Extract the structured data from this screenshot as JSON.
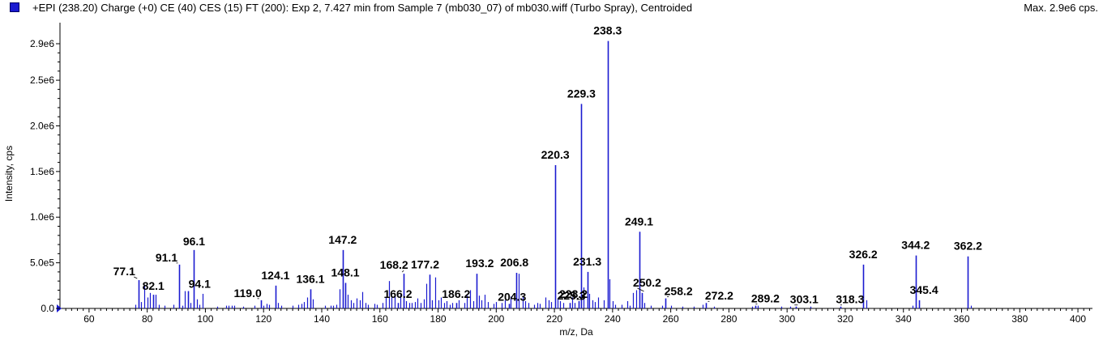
{
  "header": {
    "title": "+EPI (238.20) Charge (+0) CE (40) CES (15) FT (200): Exp 2, 7.427 min from Sample 7 (mb030_07) of mb030.wiff (Turbo Spray), Centroided",
    "max_label": "Max. 2.9e6 cps."
  },
  "colors": {
    "peaks": "#1a1ad0",
    "axis": "#000000"
  },
  "chart_data": {
    "type": "bar",
    "xlabel": "m/z, Da",
    "ylabel": "Intensity, cps",
    "xlim": [
      50,
      405
    ],
    "ylim": [
      0,
      2950000
    ],
    "x_ticks": [
      60,
      80,
      100,
      120,
      140,
      160,
      180,
      200,
      220,
      240,
      260,
      280,
      300,
      320,
      340,
      360,
      380,
      400
    ],
    "x_tick_labels": [
      "60",
      "80",
      "100",
      "120",
      "140",
      "160",
      "180",
      "200",
      "220",
      "240",
      "260",
      "280",
      "300",
      "320",
      "340",
      "360",
      "380",
      "400"
    ],
    "y_ticks": [
      0,
      500000,
      1000000,
      1500000,
      2000000,
      2500000,
      2900000
    ],
    "y_tick_labels": [
      "0.0",
      "5.0e5",
      "1.0e6",
      "1.5e6",
      "2.0e6",
      "2.5e6",
      "2.9e6"
    ],
    "labeled_peaks": [
      {
        "label": "77.1",
        "x": 77.1,
        "y": 310000
      },
      {
        "label": "82.1",
        "x": 82.1,
        "y": 150000
      },
      {
        "label": "91.1",
        "x": 91.1,
        "y": 480000
      },
      {
        "label": "94.1",
        "x": 94.1,
        "y": 190000
      },
      {
        "label": "96.1",
        "x": 96.1,
        "y": 640000
      },
      {
        "label": "119.0",
        "x": 119.0,
        "y": 90000
      },
      {
        "label": "124.1",
        "x": 124.1,
        "y": 250000
      },
      {
        "label": "136.1",
        "x": 136.1,
        "y": 210000
      },
      {
        "label": "147.2",
        "x": 147.2,
        "y": 640000
      },
      {
        "label": "148.1",
        "x": 148.1,
        "y": 280000
      },
      {
        "label": "166.2",
        "x": 166.2,
        "y": 60000
      },
      {
        "label": "168.2",
        "x": 168.2,
        "y": 380000
      },
      {
        "label": "177.2",
        "x": 177.2,
        "y": 370000
      },
      {
        "label": "186.2",
        "x": 186.2,
        "y": 60000
      },
      {
        "label": "193.2",
        "x": 193.2,
        "y": 380000
      },
      {
        "label": "204.3",
        "x": 204.3,
        "y": 50000
      },
      {
        "label": "206.8",
        "x": 206.8,
        "y": 390000
      },
      {
        "label": "220.3",
        "x": 220.3,
        "y": 1570000
      },
      {
        "label": "225.3",
        "x": 225.3,
        "y": 60000
      },
      {
        "label": "228.2",
        "x": 228.2,
        "y": 80000
      },
      {
        "label": "229.3",
        "x": 229.3,
        "y": 2240000
      },
      {
        "label": "231.3",
        "x": 231.3,
        "y": 400000
      },
      {
        "label": "238.3",
        "x": 238.3,
        "y": 2930000
      },
      {
        "label": "249.1",
        "x": 249.1,
        "y": 840000
      },
      {
        "label": "250.2",
        "x": 250.2,
        "y": 170000
      },
      {
        "label": "258.2",
        "x": 258.2,
        "y": 110000
      },
      {
        "label": "272.2",
        "x": 272.2,
        "y": 60000
      },
      {
        "label": "289.2",
        "x": 289.2,
        "y": 30000
      },
      {
        "label": "303.1",
        "x": 303.1,
        "y": 20000
      },
      {
        "label": "318.3",
        "x": 318.3,
        "y": 20000
      },
      {
        "label": "326.2",
        "x": 326.2,
        "y": 480000
      },
      {
        "label": "344.2",
        "x": 344.2,
        "y": 580000
      },
      {
        "label": "345.4",
        "x": 345.4,
        "y": 90000
      },
      {
        "label": "362.2",
        "x": 362.2,
        "y": 570000
      }
    ],
    "minor_peaks": [
      {
        "x": 76.0,
        "y": 40000
      },
      {
        "x": 78.0,
        "y": 70000
      },
      {
        "x": 79.0,
        "y": 260000
      },
      {
        "x": 80.0,
        "y": 120000
      },
      {
        "x": 81.0,
        "y": 170000
      },
      {
        "x": 83.0,
        "y": 150000
      },
      {
        "x": 84.0,
        "y": 40000
      },
      {
        "x": 86.0,
        "y": 30000
      },
      {
        "x": 89.0,
        "y": 40000
      },
      {
        "x": 92.0,
        "y": 30000
      },
      {
        "x": 93.0,
        "y": 190000
      },
      {
        "x": 95.0,
        "y": 60000
      },
      {
        "x": 97.0,
        "y": 100000
      },
      {
        "x": 98.0,
        "y": 40000
      },
      {
        "x": 99.0,
        "y": 160000
      },
      {
        "x": 104.0,
        "y": 20000
      },
      {
        "x": 107.0,
        "y": 30000
      },
      {
        "x": 108.0,
        "y": 30000
      },
      {
        "x": 109.0,
        "y": 30000
      },
      {
        "x": 110.0,
        "y": 30000
      },
      {
        "x": 113.0,
        "y": 20000
      },
      {
        "x": 117.0,
        "y": 30000
      },
      {
        "x": 120.0,
        "y": 30000
      },
      {
        "x": 121.0,
        "y": 50000
      },
      {
        "x": 122.0,
        "y": 40000
      },
      {
        "x": 125.0,
        "y": 60000
      },
      {
        "x": 126.0,
        "y": 30000
      },
      {
        "x": 130.0,
        "y": 30000
      },
      {
        "x": 132.0,
        "y": 40000
      },
      {
        "x": 133.0,
        "y": 50000
      },
      {
        "x": 134.0,
        "y": 70000
      },
      {
        "x": 135.0,
        "y": 120000
      },
      {
        "x": 137.0,
        "y": 100000
      },
      {
        "x": 141.0,
        "y": 30000
      },
      {
        "x": 143.0,
        "y": 30000
      },
      {
        "x": 144.0,
        "y": 30000
      },
      {
        "x": 145.0,
        "y": 40000
      },
      {
        "x": 146.0,
        "y": 210000
      },
      {
        "x": 149.0,
        "y": 150000
      },
      {
        "x": 150.0,
        "y": 90000
      },
      {
        "x": 151.0,
        "y": 60000
      },
      {
        "x": 152.0,
        "y": 110000
      },
      {
        "x": 153.0,
        "y": 90000
      },
      {
        "x": 154.0,
        "y": 180000
      },
      {
        "x": 155.0,
        "y": 60000
      },
      {
        "x": 156.0,
        "y": 40000
      },
      {
        "x": 158.0,
        "y": 50000
      },
      {
        "x": 159.0,
        "y": 40000
      },
      {
        "x": 161.0,
        "y": 60000
      },
      {
        "x": 162.0,
        "y": 120000
      },
      {
        "x": 163.0,
        "y": 300000
      },
      {
        "x": 164.0,
        "y": 120000
      },
      {
        "x": 165.0,
        "y": 140000
      },
      {
        "x": 167.0,
        "y": 150000
      },
      {
        "x": 169.0,
        "y": 80000
      },
      {
        "x": 170.0,
        "y": 60000
      },
      {
        "x": 171.0,
        "y": 60000
      },
      {
        "x": 172.0,
        "y": 70000
      },
      {
        "x": 173.0,
        "y": 110000
      },
      {
        "x": 174.0,
        "y": 60000
      },
      {
        "x": 175.0,
        "y": 100000
      },
      {
        "x": 176.0,
        "y": 270000
      },
      {
        "x": 178.0,
        "y": 90000
      },
      {
        "x": 179.0,
        "y": 340000
      },
      {
        "x": 180.0,
        "y": 90000
      },
      {
        "x": 181.0,
        "y": 120000
      },
      {
        "x": 182.0,
        "y": 60000
      },
      {
        "x": 183.0,
        "y": 80000
      },
      {
        "x": 184.0,
        "y": 40000
      },
      {
        "x": 185.0,
        "y": 60000
      },
      {
        "x": 187.0,
        "y": 90000
      },
      {
        "x": 189.0,
        "y": 60000
      },
      {
        "x": 190.0,
        "y": 140000
      },
      {
        "x": 191.0,
        "y": 200000
      },
      {
        "x": 192.0,
        "y": 80000
      },
      {
        "x": 194.0,
        "y": 140000
      },
      {
        "x": 195.0,
        "y": 90000
      },
      {
        "x": 196.0,
        "y": 150000
      },
      {
        "x": 197.0,
        "y": 70000
      },
      {
        "x": 199.0,
        "y": 50000
      },
      {
        "x": 200.0,
        "y": 70000
      },
      {
        "x": 202.0,
        "y": 60000
      },
      {
        "x": 203.0,
        "y": 90000
      },
      {
        "x": 205.0,
        "y": 130000
      },
      {
        "x": 207.8,
        "y": 380000
      },
      {
        "x": 209.0,
        "y": 130000
      },
      {
        "x": 210.0,
        "y": 80000
      },
      {
        "x": 211.0,
        "y": 60000
      },
      {
        "x": 213.0,
        "y": 40000
      },
      {
        "x": 214.0,
        "y": 60000
      },
      {
        "x": 215.0,
        "y": 50000
      },
      {
        "x": 217.0,
        "y": 120000
      },
      {
        "x": 218.0,
        "y": 90000
      },
      {
        "x": 219.0,
        "y": 70000
      },
      {
        "x": 221.0,
        "y": 110000
      },
      {
        "x": 222.0,
        "y": 80000
      },
      {
        "x": 223.0,
        "y": 60000
      },
      {
        "x": 226.0,
        "y": 120000
      },
      {
        "x": 227.0,
        "y": 60000
      },
      {
        "x": 230.0,
        "y": 230000
      },
      {
        "x": 232.0,
        "y": 160000
      },
      {
        "x": 233.0,
        "y": 90000
      },
      {
        "x": 234.0,
        "y": 70000
      },
      {
        "x": 235.0,
        "y": 120000
      },
      {
        "x": 237.0,
        "y": 90000
      },
      {
        "x": 239.0,
        "y": 320000
      },
      {
        "x": 240.0,
        "y": 80000
      },
      {
        "x": 241.0,
        "y": 40000
      },
      {
        "x": 243.0,
        "y": 40000
      },
      {
        "x": 245.0,
        "y": 80000
      },
      {
        "x": 246.0,
        "y": 30000
      },
      {
        "x": 247.0,
        "y": 170000
      },
      {
        "x": 248.0,
        "y": 200000
      },
      {
        "x": 251.0,
        "y": 60000
      },
      {
        "x": 253.0,
        "y": 30000
      },
      {
        "x": 257.0,
        "y": 30000
      },
      {
        "x": 260.0,
        "y": 30000
      },
      {
        "x": 264.0,
        "y": 20000
      },
      {
        "x": 268.0,
        "y": 20000
      },
      {
        "x": 271.0,
        "y": 40000
      },
      {
        "x": 275.0,
        "y": 20000
      },
      {
        "x": 288.0,
        "y": 20000
      },
      {
        "x": 290.0,
        "y": 30000
      },
      {
        "x": 298.0,
        "y": 20000
      },
      {
        "x": 301.0,
        "y": 20000
      },
      {
        "x": 308.0,
        "y": 20000
      },
      {
        "x": 327.2,
        "y": 90000
      },
      {
        "x": 343.2,
        "y": 30000
      },
      {
        "x": 363.2,
        "y": 30000
      }
    ]
  }
}
